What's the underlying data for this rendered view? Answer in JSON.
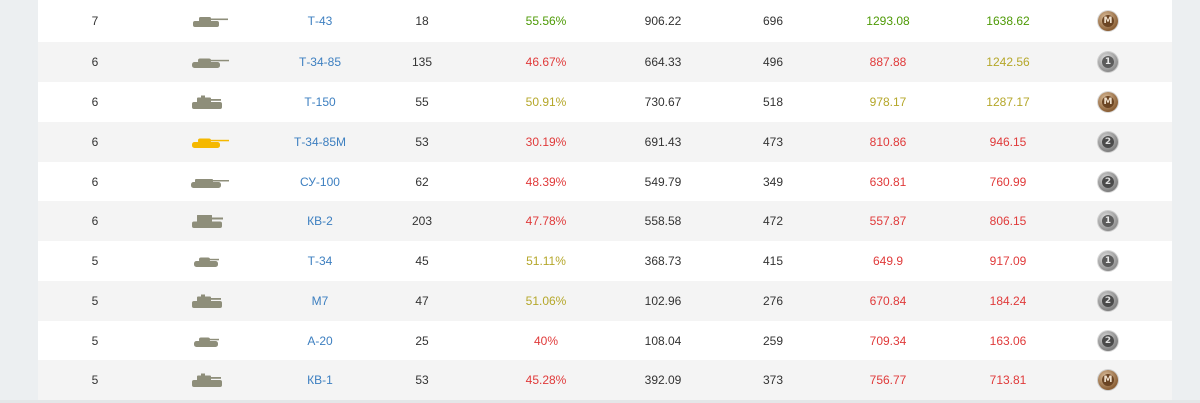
{
  "colors": {
    "win_good": "#4e9a06",
    "win_avg": "#b5a72a",
    "win_bad": "#e03a3a",
    "link": "#3d7fc0",
    "tank_default": "#8e8e7a",
    "tank_premium": "#f5b800"
  },
  "rows": [
    {
      "tier": "7",
      "tank_icon": "tank-silhouette-icon",
      "tank_color": "default",
      "tank_shape": "mid",
      "name": "Т-43",
      "battles": "18",
      "winrate": "55.56%",
      "winrate_class": "green",
      "avg_damage": "906.22",
      "avg_exp": "696",
      "wn8_a": "1293.08",
      "wn8_a_class": "green",
      "wn8_b": "1638.62",
      "wn8_b_class": "green",
      "badge": "M",
      "badge_type": "master"
    },
    {
      "tier": "6",
      "tank_icon": "tank-silhouette-icon",
      "tank_color": "default",
      "tank_shape": "long",
      "name": "Т-34-85",
      "battles": "135",
      "winrate": "46.67%",
      "winrate_class": "red",
      "avg_damage": "664.33",
      "avg_exp": "496",
      "wn8_a": "887.88",
      "wn8_a_class": "red",
      "wn8_b": "1242.56",
      "wn8_b_class": "yellow",
      "badge": "1",
      "badge_type": "first"
    },
    {
      "tier": "6",
      "tank_icon": "tank-silhouette-icon",
      "tank_color": "default",
      "tank_shape": "heavy",
      "name": "Т-150",
      "battles": "55",
      "winrate": "50.91%",
      "winrate_class": "yellow",
      "avg_damage": "730.67",
      "avg_exp": "518",
      "wn8_a": "978.17",
      "wn8_a_class": "yellow",
      "wn8_b": "1287.17",
      "wn8_b_class": "yellow",
      "badge": "M",
      "badge_type": "master"
    },
    {
      "tier": "6",
      "tank_icon": "tank-silhouette-icon",
      "tank_color": "premium",
      "tank_shape": "long",
      "name": "Т-34-85М",
      "battles": "53",
      "winrate": "30.19%",
      "winrate_class": "red",
      "avg_damage": "691.43",
      "avg_exp": "473",
      "wn8_a": "810.86",
      "wn8_a_class": "red",
      "wn8_b": "946.15",
      "wn8_b_class": "red",
      "badge": "2",
      "badge_type": "second"
    },
    {
      "tier": "6",
      "tank_icon": "tank-silhouette-icon",
      "tank_color": "default",
      "tank_shape": "td",
      "name": "СУ-100",
      "battles": "62",
      "winrate": "48.39%",
      "winrate_class": "red",
      "avg_damage": "549.79",
      "avg_exp": "349",
      "wn8_a": "630.81",
      "wn8_a_class": "red",
      "wn8_b": "760.99",
      "wn8_b_class": "red",
      "badge": "2",
      "badge_type": "second"
    },
    {
      "tier": "6",
      "tank_icon": "tank-silhouette-icon",
      "tank_color": "default",
      "tank_shape": "boxy",
      "name": "КВ-2",
      "battles": "203",
      "winrate": "47.78%",
      "winrate_class": "red",
      "avg_damage": "558.58",
      "avg_exp": "472",
      "wn8_a": "557.87",
      "wn8_a_class": "red",
      "wn8_b": "806.15",
      "wn8_b_class": "red",
      "badge": "1",
      "badge_type": "first"
    },
    {
      "tier": "5",
      "tank_icon": "tank-silhouette-icon",
      "tank_color": "default",
      "tank_shape": "small",
      "name": "Т-34",
      "battles": "45",
      "winrate": "51.11%",
      "winrate_class": "yellow",
      "avg_damage": "368.73",
      "avg_exp": "415",
      "wn8_a": "649.9",
      "wn8_a_class": "red",
      "wn8_b": "917.09",
      "wn8_b_class": "red",
      "badge": "1",
      "badge_type": "first"
    },
    {
      "tier": "5",
      "tank_icon": "tank-silhouette-icon",
      "tank_color": "default",
      "tank_shape": "heavy",
      "name": "М7",
      "battles": "47",
      "winrate": "51.06%",
      "winrate_class": "yellow",
      "avg_damage": "102.96",
      "avg_exp": "276",
      "wn8_a": "670.84",
      "wn8_a_class": "red",
      "wn8_b": "184.24",
      "wn8_b_class": "red",
      "badge": "2",
      "badge_type": "second"
    },
    {
      "tier": "5",
      "tank_icon": "tank-silhouette-icon",
      "tank_color": "default",
      "tank_shape": "small",
      "name": "А-20",
      "battles": "25",
      "winrate": "40%",
      "winrate_class": "red",
      "avg_damage": "108.04",
      "avg_exp": "259",
      "wn8_a": "709.34",
      "wn8_a_class": "red",
      "wn8_b": "163.06",
      "wn8_b_class": "red",
      "badge": "2",
      "badge_type": "second"
    },
    {
      "tier": "5",
      "tank_icon": "tank-silhouette-icon",
      "tank_color": "default",
      "tank_shape": "heavy",
      "name": "КВ-1",
      "battles": "53",
      "winrate": "45.28%",
      "winrate_class": "red",
      "avg_damage": "392.09",
      "avg_exp": "373",
      "wn8_a": "756.77",
      "wn8_a_class": "red",
      "wn8_b": "713.81",
      "wn8_b_class": "red",
      "badge": "M",
      "badge_type": "master"
    }
  ]
}
